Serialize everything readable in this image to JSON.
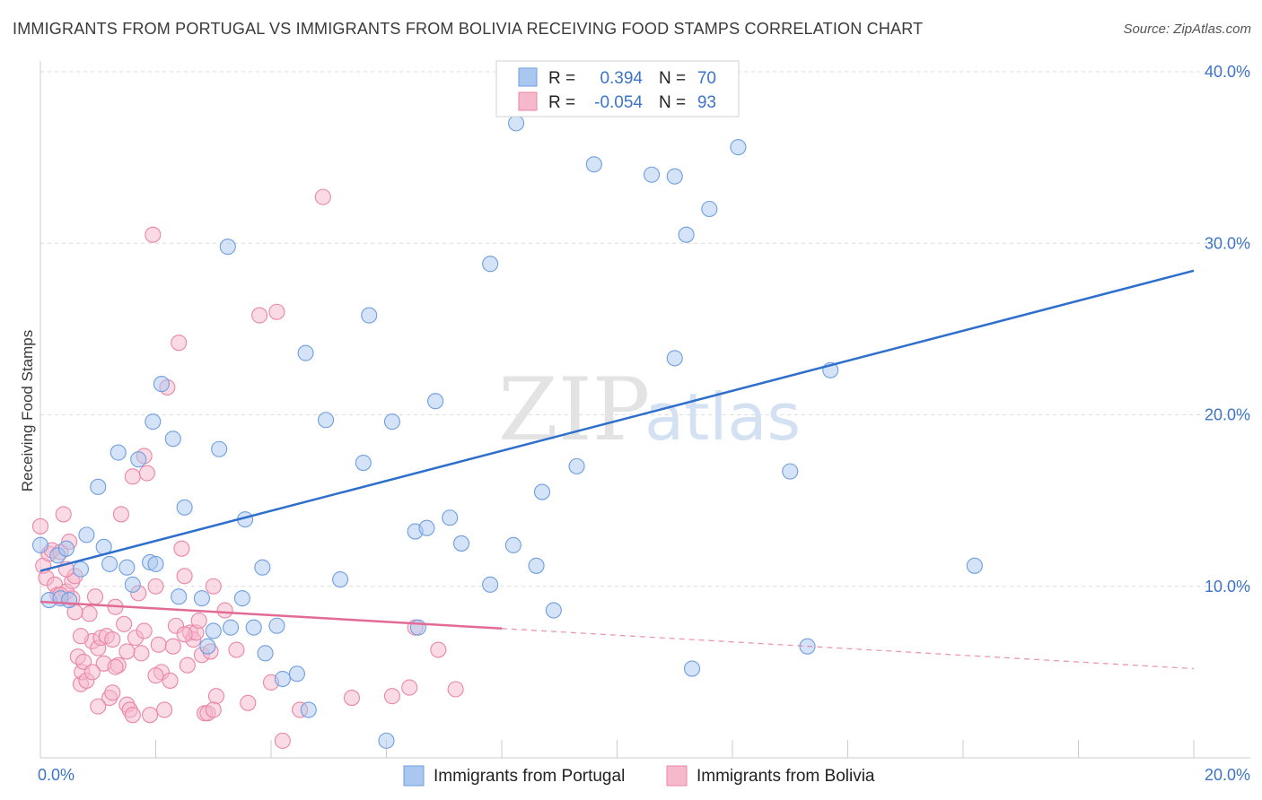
{
  "title": "IMMIGRANTS FROM PORTUGAL VS IMMIGRANTS FROM BOLIVIA RECEIVING FOOD STAMPS CORRELATION CHART",
  "source": "Source: ZipAtlas.com",
  "watermark": {
    "zip": "ZIP",
    "atlas": "atlas"
  },
  "colors": {
    "portugal_fill": "#aac8ef",
    "portugal_stroke": "#6f9ee0",
    "portugal_line": "#2e6fcd",
    "bolivia_fill": "#f6b8cb",
    "bolivia_stroke": "#ea86a6",
    "bolivia_line": "#e26b96",
    "tick_text": "#3b74c8",
    "grid": "#dcdcdc"
  },
  "legend": {
    "rows": [
      {
        "r_label": "R =",
        "r_value": "0.394",
        "n_label": "N =",
        "n_value": "70",
        "series": "portugal"
      },
      {
        "r_label": "R =",
        "r_value": "-0.054",
        "n_label": "N =",
        "n_value": "93",
        "series": "bolivia"
      }
    ]
  },
  "chart_data": {
    "type": "scatter",
    "title": "IMMIGRANTS FROM PORTUGAL VS IMMIGRANTS FROM BOLIVIA RECEIVING FOOD STAMPS CORRELATION CHART",
    "xlabel": "",
    "ylabel": "Receiving Food Stamps",
    "xlim": [
      0,
      20
    ],
    "ylim": [
      0,
      40
    ],
    "x_ticks": [
      0,
      2,
      4,
      6,
      8,
      10,
      12,
      14,
      16,
      18,
      20
    ],
    "x_tick_labels": {
      "0": "0.0%",
      "20": "20.0%"
    },
    "y_ticks": [
      10,
      20,
      30,
      40
    ],
    "y_tick_labels": [
      "10.0%",
      "20.0%",
      "30.0%",
      "40.0%"
    ],
    "grid": true,
    "legend_position": "top-center",
    "series": [
      {
        "name": "Immigrants from Portugal",
        "key": "portugal",
        "R": 0.394,
        "N": 70,
        "trend": {
          "x0": 0,
          "y0": 10.9,
          "x1": 20,
          "y1": 28.4,
          "solid_to": 20
        },
        "points": [
          [
            0.0,
            12.4
          ],
          [
            0.15,
            9.2
          ],
          [
            0.3,
            11.8
          ],
          [
            0.35,
            9.3
          ],
          [
            0.45,
            12.2
          ],
          [
            0.7,
            11.0
          ],
          [
            0.8,
            13.0
          ],
          [
            1.0,
            15.8
          ],
          [
            1.1,
            12.3
          ],
          [
            1.2,
            11.3
          ],
          [
            1.35,
            17.8
          ],
          [
            1.5,
            11.1
          ],
          [
            1.6,
            10.1
          ],
          [
            1.7,
            17.4
          ],
          [
            1.9,
            11.4
          ],
          [
            1.95,
            19.6
          ],
          [
            2.1,
            21.8
          ],
          [
            2.3,
            18.6
          ],
          [
            2.4,
            9.4
          ],
          [
            2.5,
            14.6
          ],
          [
            2.8,
            9.3
          ],
          [
            2.9,
            6.5
          ],
          [
            3.0,
            7.4
          ],
          [
            3.1,
            18.0
          ],
          [
            3.25,
            29.8
          ],
          [
            3.3,
            7.6
          ],
          [
            3.5,
            9.3
          ],
          [
            3.55,
            13.9
          ],
          [
            3.7,
            7.6
          ],
          [
            3.85,
            11.1
          ],
          [
            3.9,
            6.1
          ],
          [
            4.1,
            7.7
          ],
          [
            4.2,
            4.6
          ],
          [
            4.45,
            4.9
          ],
          [
            4.6,
            23.6
          ],
          [
            4.65,
            2.8
          ],
          [
            4.95,
            19.7
          ],
          [
            5.2,
            10.4
          ],
          [
            5.6,
            17.2
          ],
          [
            5.7,
            25.8
          ],
          [
            6.0,
            1.0
          ],
          [
            6.1,
            19.6
          ],
          [
            6.5,
            13.2
          ],
          [
            6.55,
            7.6
          ],
          [
            6.7,
            13.4
          ],
          [
            6.85,
            20.8
          ],
          [
            7.1,
            14.0
          ],
          [
            7.3,
            12.5
          ],
          [
            7.8,
            28.8
          ],
          [
            7.8,
            10.1
          ],
          [
            8.2,
            12.4
          ],
          [
            8.25,
            37.0
          ],
          [
            8.6,
            11.2
          ],
          [
            8.7,
            15.5
          ],
          [
            8.9,
            8.6
          ],
          [
            9.3,
            17.0
          ],
          [
            9.6,
            34.6
          ],
          [
            10.6,
            34.0
          ],
          [
            11.0,
            23.3
          ],
          [
            11.0,
            33.9
          ],
          [
            11.2,
            30.5
          ],
          [
            11.3,
            5.2
          ],
          [
            11.6,
            32.0
          ],
          [
            12.1,
            35.6
          ],
          [
            13.0,
            16.7
          ],
          [
            13.3,
            6.5
          ],
          [
            13.7,
            22.6
          ],
          [
            16.2,
            11.2
          ],
          [
            0.5,
            9.2
          ],
          [
            2.0,
            11.3
          ]
        ]
      },
      {
        "name": "Immigrants from Bolivia",
        "key": "bolivia",
        "R": -0.054,
        "N": 93,
        "trend": {
          "x0": 0,
          "y0": 9.1,
          "x1": 20,
          "y1": 5.2,
          "solid_to": 8.0
        },
        "points": [
          [
            0.0,
            13.5
          ],
          [
            0.05,
            11.2
          ],
          [
            0.1,
            10.5
          ],
          [
            0.15,
            11.9
          ],
          [
            0.2,
            12.1
          ],
          [
            0.25,
            10.1
          ],
          [
            0.3,
            9.5
          ],
          [
            0.35,
            12.0
          ],
          [
            0.4,
            14.2
          ],
          [
            0.45,
            9.7
          ],
          [
            0.5,
            12.6
          ],
          [
            0.55,
            10.3
          ],
          [
            0.6,
            10.6
          ],
          [
            0.65,
            5.9
          ],
          [
            0.7,
            4.3
          ],
          [
            0.72,
            5.0
          ],
          [
            0.75,
            5.6
          ],
          [
            0.8,
            4.5
          ],
          [
            0.85,
            8.4
          ],
          [
            0.9,
            6.8
          ],
          [
            0.95,
            9.4
          ],
          [
            1.0,
            6.4
          ],
          [
            1.05,
            7.0
          ],
          [
            1.1,
            5.5
          ],
          [
            1.15,
            7.1
          ],
          [
            1.2,
            3.5
          ],
          [
            1.25,
            3.8
          ],
          [
            1.3,
            8.8
          ],
          [
            1.35,
            5.4
          ],
          [
            1.4,
            14.2
          ],
          [
            1.45,
            7.8
          ],
          [
            1.5,
            3.1
          ],
          [
            1.55,
            2.8
          ],
          [
            1.6,
            16.4
          ],
          [
            1.65,
            7.0
          ],
          [
            1.7,
            9.6
          ],
          [
            1.75,
            6.1
          ],
          [
            1.8,
            17.6
          ],
          [
            1.85,
            16.6
          ],
          [
            1.9,
            2.5
          ],
          [
            1.95,
            30.5
          ],
          [
            2.0,
            10.0
          ],
          [
            2.05,
            6.6
          ],
          [
            2.1,
            5.0
          ],
          [
            2.15,
            2.8
          ],
          [
            2.2,
            21.6
          ],
          [
            2.25,
            4.5
          ],
          [
            2.3,
            6.5
          ],
          [
            2.35,
            7.7
          ],
          [
            2.4,
            24.2
          ],
          [
            2.45,
            12.2
          ],
          [
            2.5,
            10.6
          ],
          [
            2.55,
            5.4
          ],
          [
            2.6,
            7.3
          ],
          [
            2.65,
            6.9
          ],
          [
            2.7,
            7.3
          ],
          [
            2.75,
            8.0
          ],
          [
            2.8,
            6.0
          ],
          [
            2.85,
            2.6
          ],
          [
            2.9,
            2.6
          ],
          [
            2.95,
            6.2
          ],
          [
            3.0,
            10.0
          ],
          [
            3.05,
            3.6
          ],
          [
            3.2,
            8.6
          ],
          [
            3.4,
            6.3
          ],
          [
            3.6,
            3.2
          ],
          [
            3.8,
            25.8
          ],
          [
            4.1,
            26.0
          ],
          [
            4.2,
            1.0
          ],
          [
            4.5,
            2.8
          ],
          [
            4.9,
            32.7
          ],
          [
            5.4,
            3.5
          ],
          [
            6.1,
            3.6
          ],
          [
            6.4,
            4.1
          ],
          [
            6.5,
            7.6
          ],
          [
            6.9,
            6.3
          ],
          [
            7.2,
            4.0
          ],
          [
            0.55,
            9.3
          ],
          [
            0.9,
            5.0
          ],
          [
            1.25,
            6.9
          ],
          [
            1.6,
            2.5
          ],
          [
            1.0,
            3.0
          ],
          [
            1.3,
            5.3
          ],
          [
            0.45,
            11.0
          ],
          [
            0.7,
            7.1
          ],
          [
            2.0,
            4.8
          ],
          [
            3.0,
            2.8
          ],
          [
            4.0,
            4.4
          ],
          [
            1.8,
            7.4
          ],
          [
            2.5,
            7.2
          ],
          [
            0.35,
            9.5
          ],
          [
            0.6,
            8.5
          ],
          [
            1.5,
            6.2
          ]
        ]
      }
    ]
  },
  "bottom_legend": [
    {
      "label": "Immigrants from Portugal",
      "series": "portugal"
    },
    {
      "label": "Immigrants from Bolivia",
      "series": "bolivia"
    }
  ]
}
